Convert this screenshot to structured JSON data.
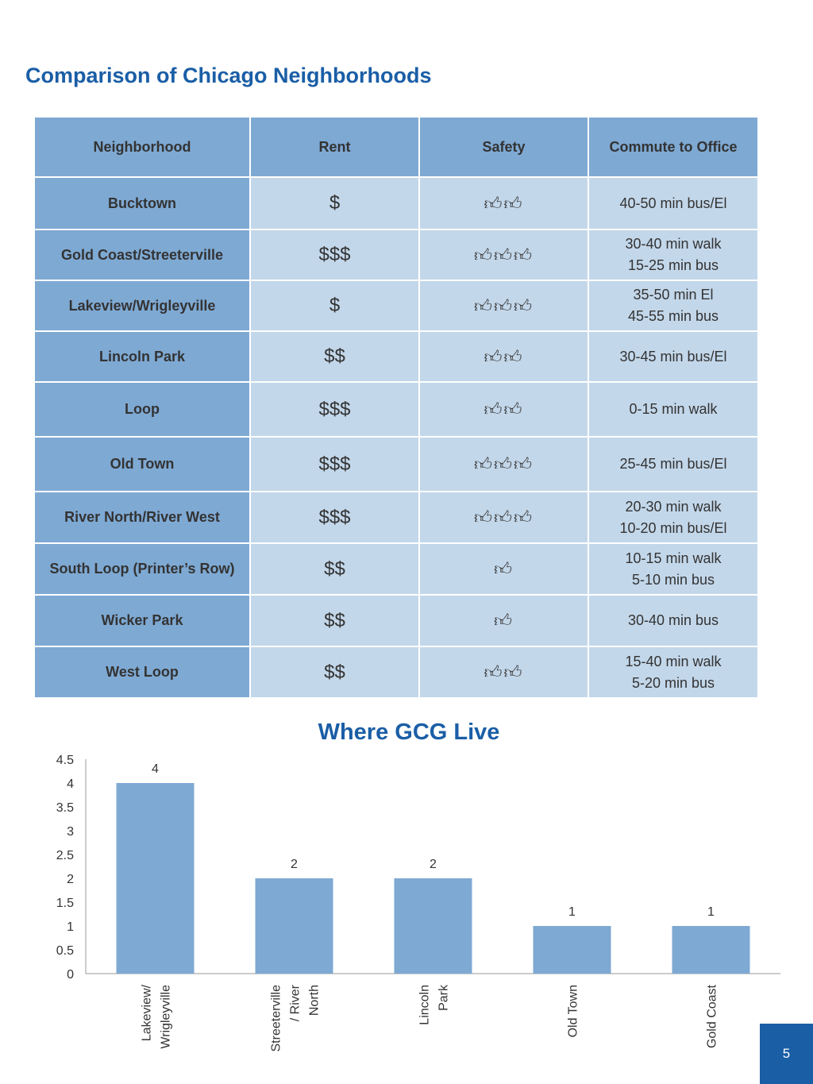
{
  "title": "Comparison of Chicago Neighborhoods",
  "table": {
    "headers": [
      "Neighborhood",
      "Rent",
      "Safety",
      "Commute to Office"
    ],
    "rows": [
      {
        "neighborhood": "Bucktown",
        "rent": "$",
        "safety": 2,
        "commute": [
          "40-50 min bus/El"
        ]
      },
      {
        "neighborhood": "Gold Coast/Streeterville",
        "rent": "$$$",
        "safety": 3,
        "commute": [
          "30-40 min walk",
          "15-25 min bus"
        ]
      },
      {
        "neighborhood": "Lakeview/Wrigleyville",
        "rent": "$",
        "safety": 3,
        "commute": [
          "35-50 min El",
          "45-55 min bus"
        ]
      },
      {
        "neighborhood": "Lincoln Park",
        "rent": "$$",
        "safety": 2,
        "commute": [
          "30-45 min bus/El"
        ]
      },
      {
        "neighborhood": "Loop",
        "rent": "$$$",
        "safety": 2,
        "commute": [
          "0-15 min walk"
        ]
      },
      {
        "neighborhood": "Old Town",
        "rent": "$$$",
        "safety": 3,
        "commute": [
          "25-45 min bus/El"
        ]
      },
      {
        "neighborhood": "River North/River West",
        "rent": "$$$",
        "safety": 3,
        "commute": [
          "20-30 min walk",
          "10-20 min bus/El"
        ]
      },
      {
        "neighborhood": "South Loop (Printer’s Row)",
        "rent": "$$",
        "safety": 1,
        "commute": [
          "10-15 min walk",
          "5-10 min bus"
        ]
      },
      {
        "neighborhood": "Wicker Park",
        "rent": "$$",
        "safety": 1,
        "commute": [
          "30-40 min bus"
        ]
      },
      {
        "neighborhood": "West Loop",
        "rent": "$$",
        "safety": 2,
        "commute": [
          "15-40 min walk",
          "5-20 min bus"
        ]
      }
    ],
    "safety_icon": "thumbs-up-icon"
  },
  "chart_data": {
    "type": "bar",
    "title": "Where GCG Live",
    "categories": [
      [
        "Lakeview/",
        "Wrigleyville"
      ],
      [
        "Streeterville",
        "/ River",
        "North"
      ],
      [
        "Lincoln",
        "Park"
      ],
      [
        "Old Town"
      ],
      [
        "Gold Coast"
      ]
    ],
    "values": [
      4,
      2,
      2,
      1,
      1
    ],
    "ylim": [
      0,
      4.5
    ],
    "yticks": [
      "0",
      "0.5",
      "1",
      "1.5",
      "2",
      "2.5",
      "3",
      "3.5",
      "4",
      "4.5"
    ],
    "grid": false,
    "bar_color": "#7ea9d3"
  },
  "page_number": "5",
  "colors": {
    "title": "#1a5ea6",
    "header_fill": "#7ea9d3",
    "cell_fill": "#c3d7ea",
    "page_badge": "#1a5ea6"
  }
}
